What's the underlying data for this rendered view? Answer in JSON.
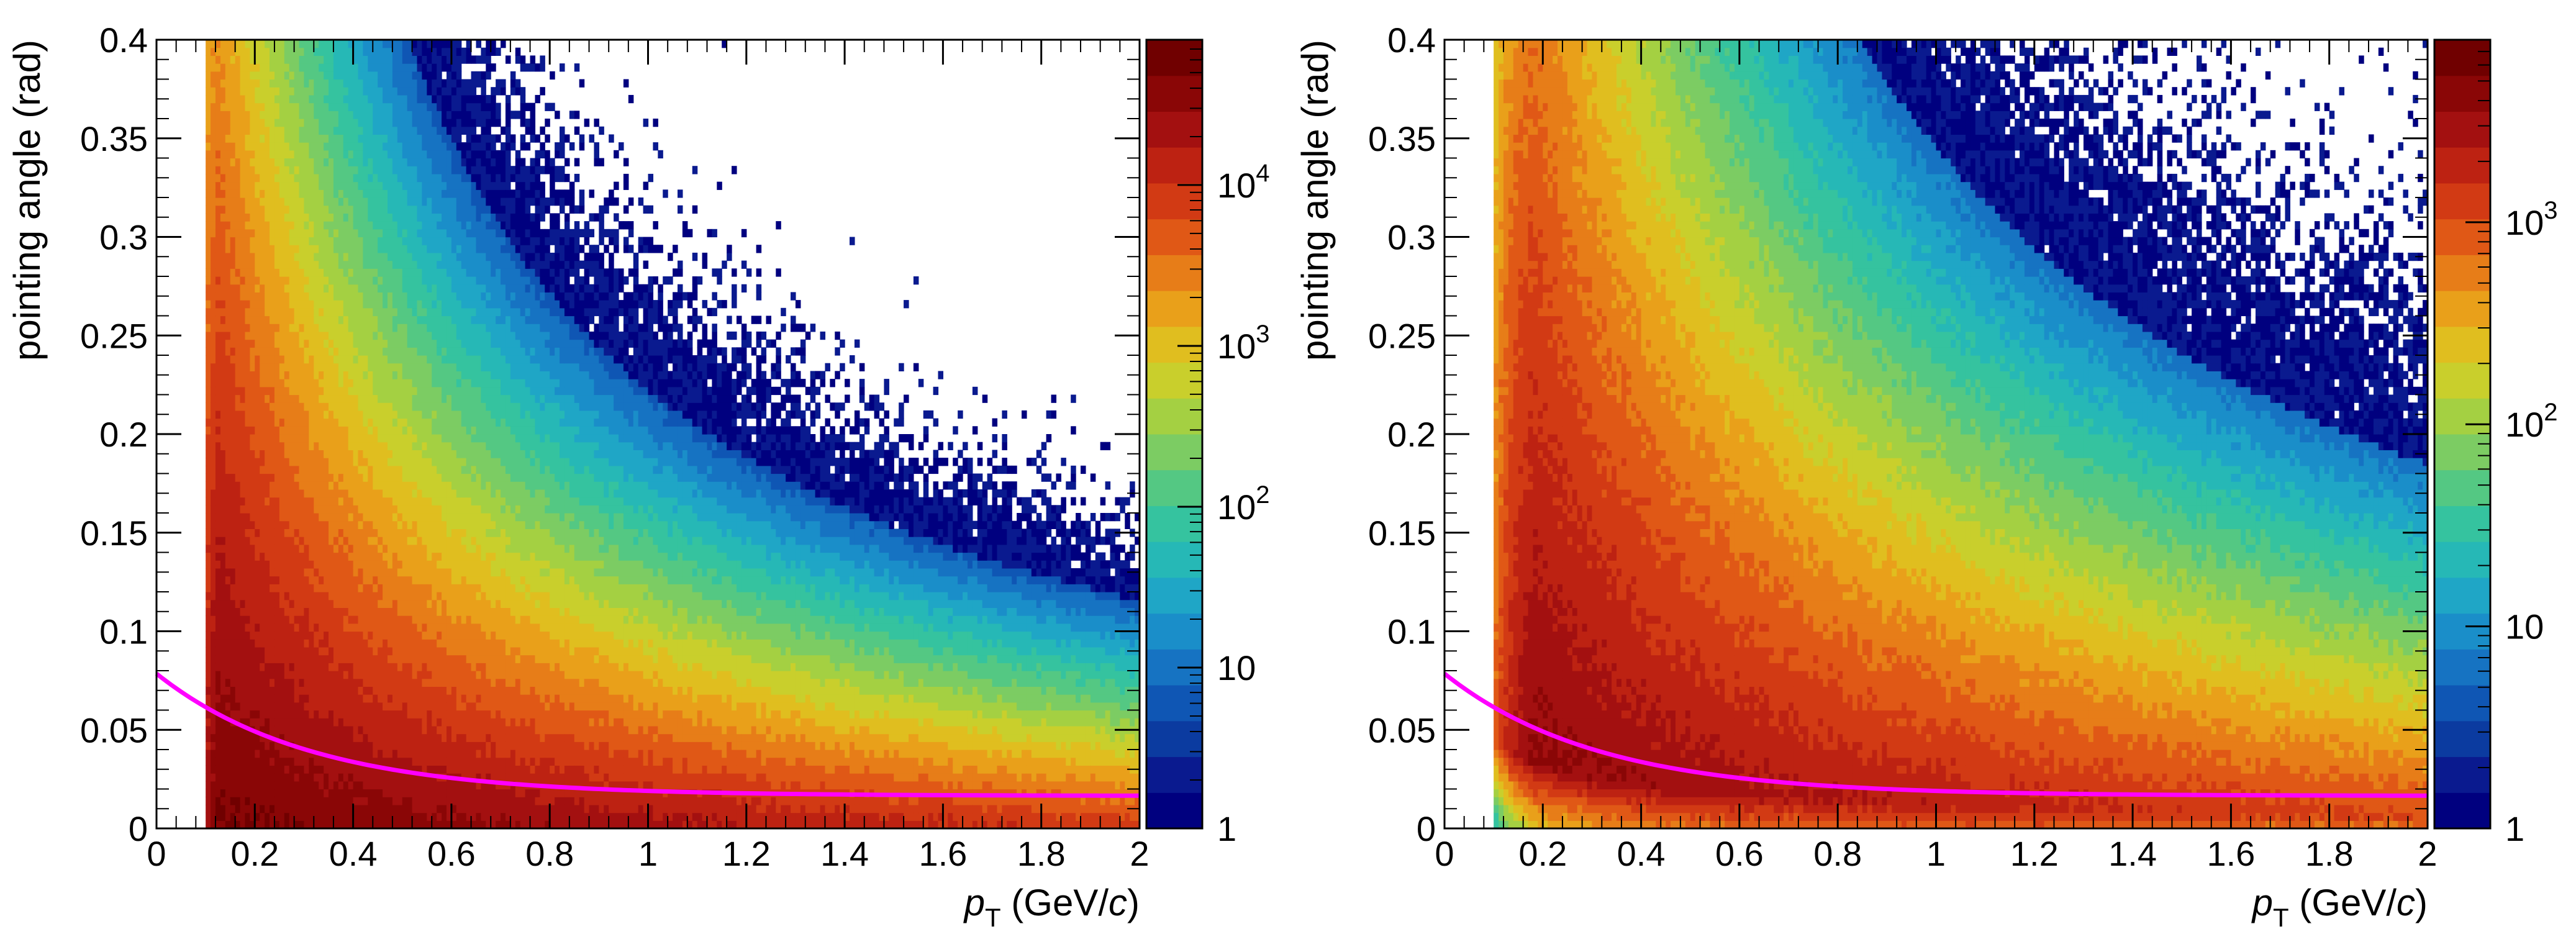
{
  "chart_data": [
    {
      "type": "heatmap",
      "panel": "left",
      "xlabel_italic": "p",
      "xlabel_sub": "T",
      "xlabel_unit_prefix": " (GeV/",
      "xlabel_unit_italic": "c",
      "xlabel_unit_suffix": ")",
      "ylabel": "pointing angle (rad)",
      "xlim": [
        0,
        2
      ],
      "ylim": [
        0,
        0.4
      ],
      "x_ticks": [
        0,
        0.2,
        0.4,
        0.6,
        0.8,
        1,
        1.2,
        1.4,
        1.6,
        1.8,
        2
      ],
      "x_tick_labels": [
        "0",
        "0.2",
        "0.4",
        "0.6",
        "0.8",
        "1",
        "1.2",
        "1.4",
        "1.6",
        "1.8",
        "2"
      ],
      "y_ticks": [
        0,
        0.05,
        0.1,
        0.15,
        0.2,
        0.25,
        0.3,
        0.35,
        0.4
      ],
      "y_tick_labels": [
        "0",
        "0.05",
        "0.1",
        "0.15",
        "0.2",
        "0.25",
        "0.3",
        "0.35",
        "0.4"
      ],
      "colorbar": {
        "scale": "log",
        "min": 1,
        "max": 80000,
        "ticks": [
          {
            "value": 1,
            "label": "1"
          },
          {
            "value": 10,
            "label": "10"
          },
          {
            "value": 100,
            "label": "10",
            "exp": "2"
          },
          {
            "value": 1000,
            "label": "10",
            "exp": "3"
          },
          {
            "value": 10000,
            "label": "10",
            "exp": "4"
          }
        ]
      },
      "density_model": {
        "peak_count": 60000,
        "x_start": 0.1,
        "y_core": 0.012,
        "spread_a": 0.009,
        "spread_b": 0.055
      },
      "cut_curve": {
        "color": "#ff00ff",
        "a": 0.0165,
        "b": 0.062,
        "c": 3.2
      },
      "cut_curve_points": [
        [
          0,
          0.078
        ],
        [
          0.2,
          0.049
        ],
        [
          0.5,
          0.029
        ],
        [
          1.0,
          0.019
        ],
        [
          2.0,
          0.017
        ]
      ]
    },
    {
      "type": "heatmap",
      "panel": "right",
      "xlabel_italic": "p",
      "xlabel_sub": "T",
      "xlabel_unit_prefix": " (GeV/",
      "xlabel_unit_italic": "c",
      "xlabel_unit_suffix": ")",
      "ylabel": "pointing angle (rad)",
      "xlim": [
        0,
        2
      ],
      "ylim": [
        0,
        0.4
      ],
      "x_ticks": [
        0,
        0.2,
        0.4,
        0.6,
        0.8,
        1,
        1.2,
        1.4,
        1.6,
        1.8,
        2
      ],
      "x_tick_labels": [
        "0",
        "0.2",
        "0.4",
        "0.6",
        "0.8",
        "1",
        "1.2",
        "1.4",
        "1.6",
        "1.8",
        "2"
      ],
      "y_ticks": [
        0,
        0.05,
        0.1,
        0.15,
        0.2,
        0.25,
        0.3,
        0.35,
        0.4
      ],
      "y_tick_labels": [
        "0",
        "0.05",
        "0.1",
        "0.15",
        "0.2",
        "0.25",
        "0.3",
        "0.35",
        "0.4"
      ],
      "colorbar": {
        "scale": "log",
        "min": 1,
        "max": 8000,
        "ticks": [
          {
            "value": 1,
            "label": "1"
          },
          {
            "value": 10,
            "label": "10"
          },
          {
            "value": 100,
            "label": "10",
            "exp": "2"
          },
          {
            "value": 1000,
            "label": "10",
            "exp": "3"
          }
        ]
      },
      "density_model": {
        "peak_count": 4500,
        "x_start": 0.1,
        "y_core": 0.06,
        "spread_a": 0.02,
        "spread_b": 0.09
      },
      "cut_curve": {
        "color": "#ff00ff",
        "a": 0.0165,
        "b": 0.062,
        "c": 3.2
      },
      "cut_curve_points": [
        [
          0,
          0.078
        ],
        [
          0.2,
          0.049
        ],
        [
          0.5,
          0.029
        ],
        [
          1.0,
          0.019
        ],
        [
          2.0,
          0.017
        ]
      ]
    }
  ],
  "palette": [
    "#00007f",
    "#0a1a8f",
    "#0b3ba0",
    "#0f56b4",
    "#1673c2",
    "#1a8ec9",
    "#1fa6c6",
    "#26b8b6",
    "#35c39f",
    "#54c883",
    "#7ccc63",
    "#a4d042",
    "#c9cf2c",
    "#e0be1f",
    "#e9a01a",
    "#e77d18",
    "#e05816",
    "#d23a14",
    "#bd2212",
    "#a31010",
    "#8a0606",
    "#700000"
  ]
}
